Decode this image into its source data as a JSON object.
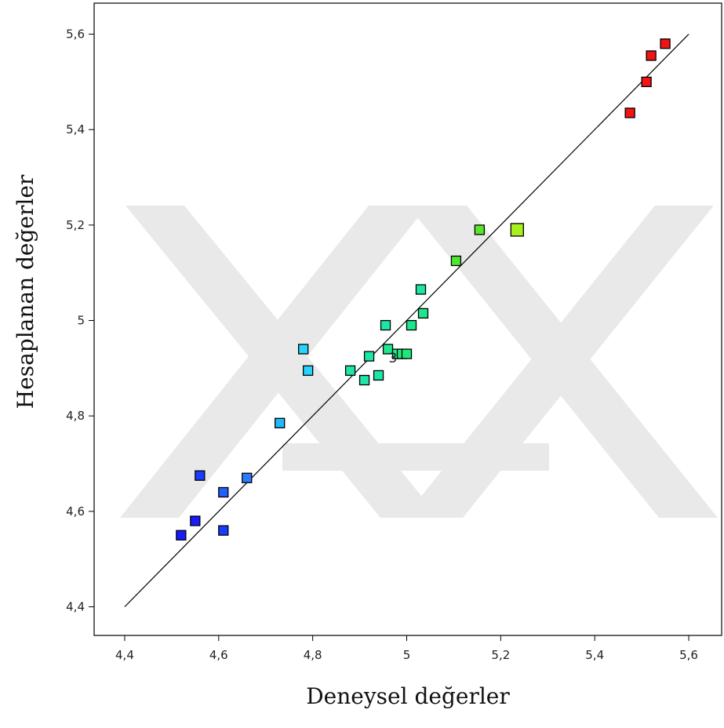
{
  "chart_data": {
    "type": "scatter",
    "title": "",
    "xlabel": "Deneysel değerler",
    "ylabel": "Hesaplanan değerler",
    "xlim": [
      4.335,
      5.67
    ],
    "ylim": [
      4.34,
      5.665
    ],
    "xticks": [
      {
        "value": 4.4,
        "label": "4,4"
      },
      {
        "value": 4.6,
        "label": "4,6"
      },
      {
        "value": 4.8,
        "label": "4,8"
      },
      {
        "value": 5.0,
        "label": "5"
      },
      {
        "value": 5.2,
        "label": "5,2"
      },
      {
        "value": 5.4,
        "label": "5,4"
      },
      {
        "value": 5.6,
        "label": "5,6"
      }
    ],
    "yticks": [
      {
        "value": 4.4,
        "label": "4,4"
      },
      {
        "value": 4.6,
        "label": "4,6"
      },
      {
        "value": 4.8,
        "label": "4,8"
      },
      {
        "value": 5.0,
        "label": "5"
      },
      {
        "value": 5.2,
        "label": "5,2"
      },
      {
        "value": 5.4,
        "label": "5,4"
      },
      {
        "value": 5.6,
        "label": "5,6"
      }
    ],
    "reference_line": {
      "x": [
        4.4,
        5.6
      ],
      "y": [
        4.4,
        5.6
      ]
    },
    "grid": false,
    "legend": "none",
    "marker": "square",
    "points": [
      {
        "x": 4.52,
        "y": 4.55,
        "color": "#1a1aff"
      },
      {
        "x": 4.55,
        "y": 4.58,
        "color": "#1a1aff"
      },
      {
        "x": 4.56,
        "y": 4.675,
        "color": "#1a3cff"
      },
      {
        "x": 4.61,
        "y": 4.56,
        "color": "#1a3cff"
      },
      {
        "x": 4.61,
        "y": 4.64,
        "color": "#2060ff"
      },
      {
        "x": 4.66,
        "y": 4.67,
        "color": "#2a7cff"
      },
      {
        "x": 4.73,
        "y": 4.785,
        "color": "#20b8ff"
      },
      {
        "x": 4.78,
        "y": 4.94,
        "color": "#28d4ff"
      },
      {
        "x": 4.79,
        "y": 4.895,
        "color": "#28d4ff"
      },
      {
        "x": 4.88,
        "y": 4.895,
        "color": "#1ee6a8"
      },
      {
        "x": 4.91,
        "y": 4.875,
        "color": "#1ee6a8"
      },
      {
        "x": 4.92,
        "y": 4.925,
        "color": "#1ee6a8"
      },
      {
        "x": 4.94,
        "y": 4.885,
        "color": "#1ee6a8"
      },
      {
        "x": 4.955,
        "y": 4.99,
        "color": "#1ee6a8"
      },
      {
        "x": 4.96,
        "y": 4.94,
        "color": "#1ee68c"
      },
      {
        "x": 4.98,
        "y": 4.93,
        "color": "#1ee68c"
      },
      {
        "x": 4.99,
        "y": 4.93,
        "color": "#1ee678"
      },
      {
        "x": 5.0,
        "y": 4.93,
        "color": "#1ee678"
      },
      {
        "x": 5.01,
        "y": 4.99,
        "color": "#1ee68c"
      },
      {
        "x": 5.03,
        "y": 5.065,
        "color": "#1ee6a0"
      },
      {
        "x": 5.035,
        "y": 5.015,
        "color": "#1ee68c"
      },
      {
        "x": 5.105,
        "y": 5.125,
        "color": "#4ee632"
      },
      {
        "x": 5.155,
        "y": 5.19,
        "color": "#58e628"
      },
      {
        "x": 5.235,
        "y": 5.19,
        "color": "#a8f01e",
        "size": "large"
      },
      {
        "x": 5.475,
        "y": 5.435,
        "color": "#f01414"
      },
      {
        "x": 5.51,
        "y": 5.5,
        "color": "#f01414"
      },
      {
        "x": 5.52,
        "y": 5.555,
        "color": "#f01414"
      },
      {
        "x": 5.55,
        "y": 5.58,
        "color": "#f01414"
      }
    ],
    "annotations": [
      {
        "text": "3",
        "x": 4.965,
        "y": 4.925
      }
    ]
  }
}
